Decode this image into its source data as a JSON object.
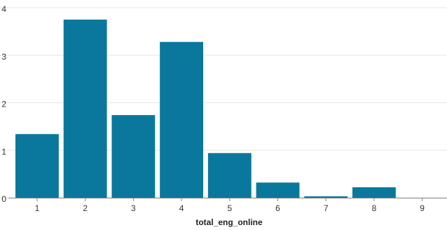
{
  "chart_data": {
    "type": "bar",
    "x_label": "total_eng_online",
    "categories": [
      "1",
      "2",
      "3",
      "4",
      "5",
      "6",
      "7",
      "8",
      "9"
    ],
    "values": [
      1.34,
      3.75,
      1.74,
      3.28,
      0.94,
      0.32,
      0.03,
      0.22,
      0
    ],
    "color": "#0a789c",
    "ylim": [
      0,
      4
    ],
    "yticks": [
      0,
      1,
      2,
      3,
      4
    ],
    "grid": true
  }
}
